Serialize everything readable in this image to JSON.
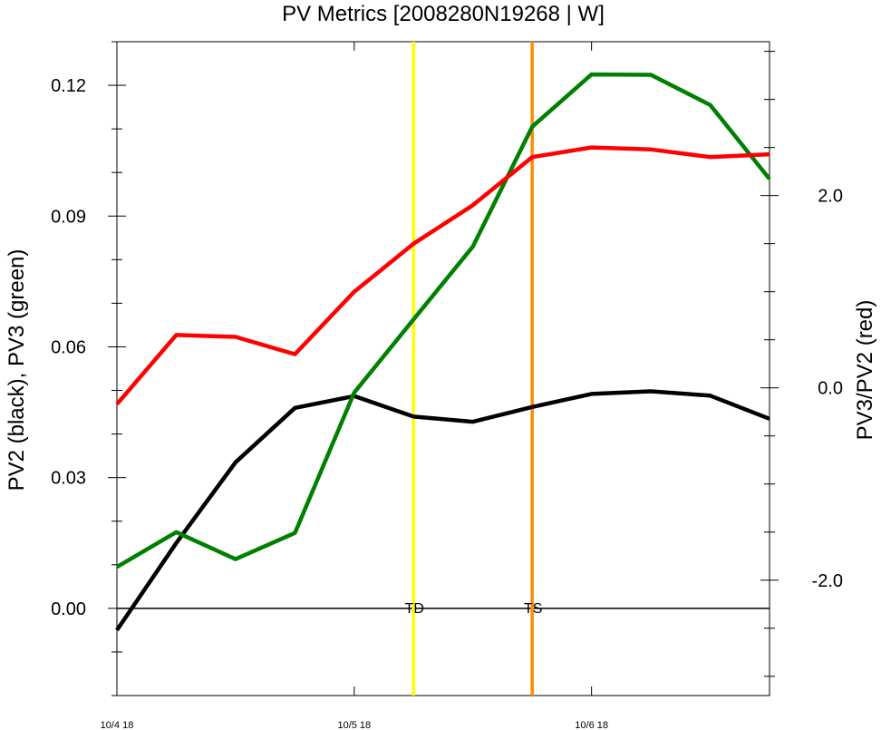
{
  "chart_data": {
    "type": "line",
    "title": "PV Metrics [2008280N19268 | W]",
    "ylabel_left": "PV2 (black), PV3 (green)",
    "ylabel_right": "PV3/PV2 (red)",
    "x": [
      0,
      1,
      2,
      3,
      4,
      5,
      6,
      7,
      8,
      9,
      10,
      11
    ],
    "x_ticks": [
      {
        "x": 0,
        "label": "10/4 18"
      },
      {
        "x": 4,
        "label": "10/5 18"
      },
      {
        "x": 8,
        "label": "10/6 18"
      }
    ],
    "xlim": [
      0,
      11
    ],
    "ylim_left": [
      -0.02,
      0.13
    ],
    "ylim_right": [
      -3.2,
      3.6
    ],
    "y_ticks_left": [
      {
        "v": 0.0,
        "label": "0.00"
      },
      {
        "v": 0.03,
        "label": "0.03"
      },
      {
        "v": 0.06,
        "label": "0.06"
      },
      {
        "v": 0.09,
        "label": "0.09"
      },
      {
        "v": 0.12,
        "label": "0.12"
      }
    ],
    "y_ticks_right": [
      {
        "v": -2.0,
        "label": "-2.0"
      },
      {
        "v": 0.0,
        "label": "0.0"
      },
      {
        "v": 2.0,
        "label": "2.0"
      }
    ],
    "series": [
      {
        "color": "#000000",
        "axis": "left",
        "values": [
          -0.005,
          0.015,
          0.0335,
          0.046,
          0.0487,
          0.044,
          0.0428,
          0.0462,
          0.0492,
          0.0498,
          0.0488,
          0.0435
        ]
      },
      {
        "color": "#008000",
        "axis": "left",
        "values": [
          0.0095,
          0.0175,
          0.0113,
          0.0173,
          0.0495,
          0.0663,
          0.083,
          0.1105,
          0.1225,
          0.1224,
          0.1155,
          0.0985
        ]
      },
      {
        "color": "#ff0000",
        "axis": "right",
        "values": [
          -0.17,
          0.55,
          0.53,
          0.35,
          1.0,
          1.5,
          1.9,
          2.4,
          2.5,
          2.48,
          2.4,
          2.43
        ]
      }
    ],
    "vlines": [
      {
        "x": 5.0,
        "color": "#ffff00",
        "label": "TD"
      },
      {
        "x": 7.0,
        "color": "#ff8c00",
        "label": "TS"
      }
    ],
    "reference_line": {
      "value": 0.0,
      "axis": "left",
      "color": "#000000"
    },
    "grid": false,
    "legend": "none"
  }
}
